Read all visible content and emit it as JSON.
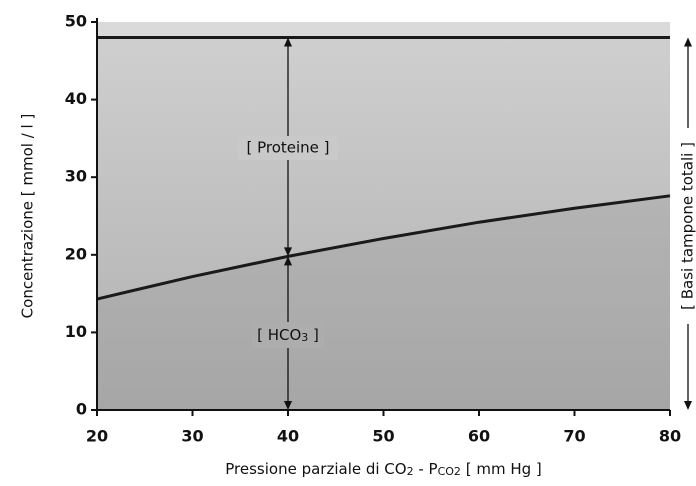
{
  "chart_data": {
    "type": "line",
    "x": [
      20,
      30,
      40,
      50,
      60,
      70,
      80
    ],
    "series": [
      {
        "color": "#1a1a1a",
        "values": [
          48,
          48,
          48,
          48,
          48,
          48,
          48
        ]
      },
      {
        "color": "#1a1a1a",
        "values": [
          14.3,
          17.2,
          19.8,
          22.1,
          24.2,
          26.0,
          27.6
        ]
      }
    ],
    "xlim": [
      20,
      80
    ],
    "xticks": [
      20,
      30,
      40,
      50,
      60,
      70,
      80
    ],
    "ylim": [
      0,
      50
    ],
    "yticks": [
      0,
      10,
      20,
      30,
      40,
      50
    ],
    "y_label": "Concentrazione [ mmol / l ]",
    "x_label": [
      "Pressione parziale di CO",
      "2",
      " - P",
      "CO2",
      " [ mm Hg ]"
    ],
    "annotations": {
      "proteine": "[ Proteine ]",
      "hco3": [
        "[ HCO",
        "3",
        " ]"
      ],
      "total": "[ Basi tampone totali ]"
    }
  }
}
